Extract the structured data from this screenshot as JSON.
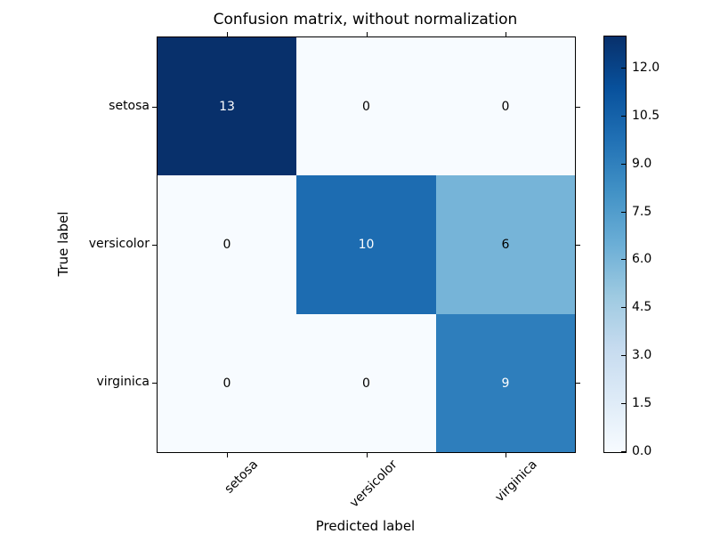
{
  "chart_data": {
    "type": "heatmap",
    "title": "Confusion matrix, without normalization",
    "xlabel": "Predicted label",
    "ylabel": "True label",
    "x_tick_labels": [
      "setosa",
      "versicolor",
      "virginica"
    ],
    "y_tick_labels": [
      "setosa",
      "versicolor",
      "virginica"
    ],
    "x_tick_rotation": 45,
    "matrix": [
      [
        13,
        0,
        0
      ],
      [
        0,
        10,
        6
      ],
      [
        0,
        0,
        9
      ]
    ],
    "vmin": 0,
    "vmax": 13,
    "colormap": "Blues",
    "grid": false,
    "cell_colors": [
      [
        "#08306b",
        "#f7fbff",
        "#f7fbff"
      ],
      [
        "#f7fbff",
        "#1d6cb1",
        "#76b4d8"
      ],
      [
        "#f7fbff",
        "#f7fbff",
        "#2e7ebc"
      ]
    ],
    "cell_text_threshold": 6.5,
    "cell_text_color_dark": "#000000",
    "cell_text_color_light": "#ffffff",
    "colorbar": {
      "tick_labels": [
        "0.0",
        "1.5",
        "3.0",
        "4.5",
        "6.0",
        "7.5",
        "9.0",
        "10.5",
        "12.0"
      ],
      "tick_values": [
        0,
        1.5,
        3,
        4.5,
        6,
        7.5,
        9,
        10.5,
        12
      ],
      "gradient_stops": [
        "#f7fbff",
        "#deebf7",
        "#c6dbef",
        "#9ecae1",
        "#6baed6",
        "#4292c6",
        "#2171b5",
        "#08519c",
        "#08306b"
      ],
      "position": "right"
    }
  },
  "colors": {
    "background": "#ffffff",
    "text": "#000000",
    "axes_border": "#000000"
  }
}
